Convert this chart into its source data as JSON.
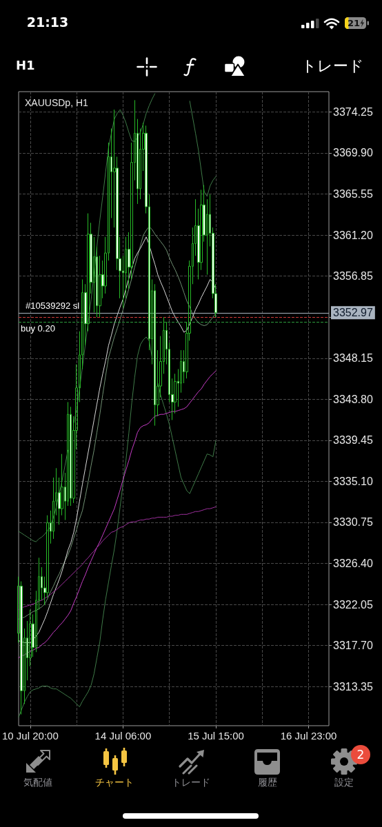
{
  "chart_data": {
    "type": "candlestick",
    "title": "XAUUSDp, H1",
    "categories": [
      null,
      null,
      null,
      null,
      "10 Jul 20:00",
      null,
      null,
      null,
      null,
      null,
      null,
      null,
      null,
      null,
      null,
      null,
      null,
      null,
      null,
      null,
      null,
      null,
      null,
      null,
      null,
      null,
      null,
      null,
      null,
      null,
      null,
      null,
      null,
      null,
      null,
      null,
      "14 Jul 06:00",
      null,
      null,
      null,
      null,
      null,
      null,
      null,
      null,
      null,
      null,
      null,
      null,
      null,
      null,
      null,
      null,
      null,
      null,
      null,
      null,
      null,
      null,
      null,
      null,
      null,
      null,
      null,
      null,
      null,
      null,
      null,
      "15 Jul 15:00",
      null,
      null,
      null,
      null,
      null,
      null,
      null,
      null,
      null,
      null,
      null,
      null,
      null,
      null,
      null,
      null,
      null,
      null,
      null,
      null,
      null,
      null,
      null,
      null,
      null,
      null,
      null,
      null,
      null,
      null,
      null,
      "16 Jul 23:00",
      null,
      null,
      null,
      null,
      null,
      null,
      null
    ],
    "color": "#27b927",
    "ohlc": [
      [
        3319.0,
        3325.0,
        3318.0,
        3324.0
      ],
      [
        3324.0,
        3324.5,
        3310.4,
        3312.9
      ],
      [
        3312.9,
        3319.5,
        3311.5,
        3318.5
      ],
      [
        3318.5,
        3320.3,
        3314.0,
        3316.4
      ],
      [
        3316.4,
        3321.5,
        3315.5,
        3320.0
      ],
      [
        3320.0,
        3321.0,
        3316.5,
        3317.5
      ],
      [
        3317.5,
        3323.5,
        3317.0,
        3322.5
      ],
      [
        3322.5,
        3327.0,
        3321.5,
        3325.0
      ],
      [
        3325.0,
        3326.0,
        3322.5,
        3323.8
      ],
      [
        3323.8,
        3325.0,
        3322.0,
        3323.3
      ],
      [
        3323.3,
        3331.5,
        3322.8,
        3330.7
      ],
      [
        3330.7,
        3332.0,
        3328.5,
        3329.8
      ],
      [
        3329.8,
        3335.5,
        3329.0,
        3333.0
      ],
      [
        3333.0,
        3336.5,
        3331.5,
        3333.9
      ],
      [
        3333.9,
        3335.5,
        3330.5,
        3332.2
      ],
      [
        3332.2,
        3338.0,
        3331.5,
        3334.5
      ],
      [
        3334.5,
        3336.0,
        3331.0,
        3333.0
      ],
      [
        3333.0,
        3343.5,
        3332.5,
        3342.2
      ],
      [
        3342.2,
        3343.0,
        3332.5,
        3333.3
      ],
      [
        3333.3,
        3342.0,
        3332.8,
        3340.5
      ],
      [
        3340.5,
        3347.5,
        3338.5,
        3345.0
      ],
      [
        3345.0,
        3351.0,
        3343.5,
        3348.5
      ],
      [
        3348.5,
        3356.5,
        3347.0,
        3355.1
      ],
      [
        3355.1,
        3356.0,
        3349.5,
        3351.8
      ],
      [
        3351.8,
        3363.5,
        3351.0,
        3361.3
      ],
      [
        3361.3,
        3362.5,
        3355.0,
        3356.2
      ],
      [
        3356.2,
        3361.0,
        3353.0,
        3358.9
      ],
      [
        3358.9,
        3360.0,
        3352.5,
        3353.7
      ],
      [
        3353.7,
        3359.0,
        3352.5,
        3357.0
      ],
      [
        3357.0,
        3358.5,
        3354.5,
        3355.8
      ],
      [
        3355.8,
        3361.0,
        3355.0,
        3359.3
      ],
      [
        3359.3,
        3371.0,
        3358.5,
        3369.5
      ],
      [
        3369.5,
        3372.5,
        3363.0,
        3367.9
      ],
      [
        3367.9,
        3374.5,
        3362.0,
        3368.3
      ],
      [
        3368.3,
        3369.5,
        3357.5,
        3358.7
      ],
      [
        3358.7,
        3361.0,
        3354.5,
        3357.4
      ],
      [
        3357.4,
        3359.0,
        3353.5,
        3357.2
      ],
      [
        3357.2,
        3361.0,
        3354.5,
        3359.7
      ],
      [
        3359.7,
        3361.5,
        3355.5,
        3357.8
      ],
      [
        3357.8,
        3371.0,
        3356.5,
        3368.9
      ],
      [
        3368.9,
        3375.5,
        3367.0,
        3372.0
      ],
      [
        3372.0,
        3373.5,
        3364.5,
        3366.1
      ],
      [
        3366.1,
        3372.5,
        3365.0,
        3370.3
      ],
      [
        3370.3,
        3373.1,
        3368.0,
        3372.0
      ],
      [
        3372.0,
        3372.8,
        3363.5,
        3364.2
      ],
      [
        3364.2,
        3365.5,
        3349.0,
        3350.2
      ],
      [
        3350.2,
        3356.5,
        3347.5,
        3355.3
      ],
      [
        3355.3,
        3356.0,
        3341.0,
        3343.2
      ],
      [
        3343.2,
        3349.0,
        3342.0,
        3345.2
      ],
      [
        3345.2,
        3350.5,
        3344.0,
        3347.8
      ],
      [
        3347.8,
        3352.5,
        3346.5,
        3351.1
      ],
      [
        3351.1,
        3352.0,
        3347.5,
        3349.1
      ],
      [
        3349.1,
        3349.8,
        3343.5,
        3344.3
      ],
      [
        3344.3,
        3346.0,
        3341.6,
        3343.5
      ],
      [
        3343.5,
        3346.5,
        3342.3,
        3345.7
      ],
      [
        3345.7,
        3347.0,
        3343.0,
        3345.5
      ],
      [
        3345.5,
        3349.0,
        3344.5,
        3347.8
      ],
      [
        3347.8,
        3349.0,
        3345.5,
        3346.7
      ],
      [
        3346.7,
        3352.0,
        3346.0,
        3350.8
      ],
      [
        3350.8,
        3358.5,
        3350.0,
        3357.9
      ],
      [
        3357.9,
        3362.0,
        3356.0,
        3360.3
      ],
      [
        3360.3,
        3365.0,
        3359.0,
        3362.2
      ],
      [
        3362.2,
        3364.0,
        3356.5,
        3358.3
      ],
      [
        3358.3,
        3366.0,
        3357.5,
        3364.4
      ],
      [
        3364.4,
        3366.5,
        3360.5,
        3361.2
      ],
      [
        3361.2,
        3365.0,
        3357.0,
        3363.4
      ],
      [
        3363.4,
        3365.5,
        3360.0,
        3361.4
      ],
      [
        3361.4,
        3362.0,
        3354.5,
        3355.0
      ],
      [
        3355.0,
        3356.0,
        3352.5,
        3352.97
      ],
      null,
      null,
      null,
      null,
      null,
      null,
      null,
      null,
      null,
      null,
      null,
      null,
      null,
      null,
      null,
      null,
      null,
      null,
      null,
      null,
      null,
      null,
      null,
      null,
      null,
      null,
      null,
      null,
      null,
      null,
      null,
      null,
      null,
      null,
      null,
      null,
      null,
      null,
      null
    ],
    "series": [
      {
        "type": "line",
        "color": "#3f7a48",
        "values": [
          3329.8,
          3329.6,
          3329.4,
          3329.2,
          3329.0,
          3328.8,
          3328.7,
          3329.0,
          3329.2,
          3329.5,
          3329.9,
          3330.3,
          3331.3,
          3332.4,
          3333.8,
          3335.2,
          3336.8,
          3338.4,
          null,
          3341.3,
          3342.7,
          3344.9,
          3347.2,
          3349.6,
          3352.0,
          3354.4,
          3357.1,
          3360.0,
          3362.8,
          3365.3,
          3367.9,
          3370.5,
          3372.0,
          3373.5,
          3374.1,
          3374.5,
          3373.9,
          3373.1,
          3372.1,
          3371.2,
          3371.1,
          3371.6,
          3372.1,
          3373.0,
          3374.1,
          3374.9,
          3375.6,
          3376.2,
          null,
          null,
          null,
          null,
          null,
          null,
          null,
          null,
          null,
          null,
          null,
          3375.4,
          3373.7,
          3372.0,
          3370.2,
          3368.0,
          3365.8,
          3365.3,
          3366.4,
          3367.0,
          3367.4,
          null,
          null,
          null,
          null,
          null,
          null,
          null,
          null,
          null,
          null,
          null,
          null,
          null,
          null,
          null,
          null,
          null,
          null,
          null,
          null,
          null,
          null,
          null,
          null,
          null,
          null,
          null,
          null,
          null,
          null,
          null,
          null,
          null,
          null,
          null,
          null,
          null,
          null,
          null
        ]
      },
      {
        "type": "line",
        "color": "#6f8f72",
        "values": [
          3320.5,
          3320.6,
          3320.7,
          3320.9,
          3321.1,
          3321.3,
          3321.4,
          3321.6,
          3321.8,
          3322.1,
          3322.7,
          3323.4,
          3324.0,
          3324.7,
          3325.3,
          3326.0,
          3326.7,
          3327.3,
          3328.1,
          3329.1,
          3330.0,
          3331.1,
          3332.0,
          3333.5,
          3335.1,
          3336.8,
          3338.4,
          3340.3,
          3342.2,
          3344.3,
          3346.3,
          3348.2,
          3349.3,
          3350.4,
          3351.3,
          3352.3,
          3353.3,
          3354.4,
          3355.5,
          3356.6,
          3357.8,
          3358.9,
          3360.1,
          3361.2,
          3361.7,
          3362.1,
          3361.8,
          3361.3,
          3360.9,
          3360.5,
          3360.1,
          3359.6,
          3358.8,
          3358.1,
          3357.5,
          3356.8,
          3356.0,
          3355.1,
          3354.2,
          3353.6,
          3352.8,
          3352.3,
          3351.9,
          3351.7,
          3351.6,
          3351.7,
          3352.1,
          3352.5,
          3352.9,
          null,
          null,
          null,
          null,
          null,
          null,
          null,
          null,
          null,
          null,
          null,
          null,
          null,
          null,
          null,
          null,
          null,
          null,
          null,
          null,
          null,
          null,
          null,
          null,
          null,
          null,
          null,
          null,
          null,
          null,
          null,
          null,
          null,
          null,
          null,
          null,
          null,
          null,
          null
        ]
      },
      {
        "type": "line",
        "color": "#3f7a48",
        "values": [
          3310.1,
          3310.9,
          3311.7,
          3312.3,
          3312.8,
          3313.0,
          3313.1,
          3313.2,
          3313.4,
          3313.4,
          3313.4,
          3313.2,
          3313.1,
          3313.1,
          3312.9,
          3312.7,
          3312.5,
          3312.3,
          3312.1,
          3311.8,
          3311.5,
          3311.2,
          3311.8,
          3312.3,
          3312.8,
          3313.5,
          3314.7,
          3316.4,
          3318.1,
          3320.5,
          3322.6,
          3324.4,
          3326.2,
          3327.9,
          3330.0,
          3332.4,
          3334.9,
          3337.3,
          3340.2,
          3343.4,
          3346.1,
          3348.4,
          3349.6,
          3350.1,
          3350.4,
          3350.0,
          3348.3,
          null,
          3345.5,
          3344.2,
          3343.2,
          3342.2,
          3341.1,
          3339.7,
          3338.3,
          3336.9,
          3335.5,
          3334.8,
          3334.1,
          3333.8,
          3334.5,
          3335.2,
          3335.9,
          3336.6,
          3337.3,
          3338.0,
          3337.9,
          3337.7,
          3339.4,
          null,
          null,
          null,
          null,
          null,
          null,
          null,
          null,
          null,
          null,
          null,
          null,
          null,
          null,
          null,
          null,
          null,
          null,
          null,
          null,
          null,
          null,
          null,
          null,
          null,
          null,
          null,
          null,
          null,
          null,
          null,
          null,
          null,
          null,
          null,
          null,
          null,
          null,
          null
        ]
      },
      {
        "type": "line",
        "color": "#d9d9d9",
        "values": [
          3318.2,
          3318.1,
          3318.0,
          3318.0,
          3318.0,
          3318.3,
          3318.7,
          3319.1,
          3319.8,
          3320.5,
          3321.3,
          3322.2,
          3323.1,
          3323.9,
          3324.7,
          3325.6,
          3326.7,
          3327.8,
          3328.6,
          3329.7,
          3331.2,
          3333.0,
          3334.8,
          3336.5,
          3338.2,
          3339.9,
          3341.6,
          3343.3,
          3345.0,
          3346.5,
          3347.9,
          3349.5,
          3350.6,
          3351.8,
          3352.7,
          3353.6,
          3354.4,
          3355.5,
          3356.6,
          3357.7,
          3358.7,
          3359.3,
          3359.8,
          3360.4,
          3361.0,
          3360.2,
          3359.1,
          3358.1,
          3357.0,
          3356.2,
          3355.5,
          3354.7,
          3353.9,
          3353.1,
          3352.5,
          3352.0,
          3351.5,
          3350.9,
          3351.1,
          3351.8,
          3352.5,
          3353.3,
          3353.9,
          3354.6,
          3355.2,
          3355.8,
          3356.5,
          3356.2,
          3355.5,
          null,
          null,
          null,
          null,
          null,
          null,
          null,
          null,
          null,
          null,
          null,
          null,
          null,
          null,
          null,
          null,
          null,
          null,
          null,
          null,
          null,
          null,
          null,
          null,
          null,
          null,
          null,
          null,
          null,
          null,
          null,
          null,
          null,
          null,
          null,
          null,
          null,
          null,
          null
        ]
      },
      {
        "type": "line",
        "color": "#c43cc4",
        "values": [
          3316.4,
          3316.6,
          3316.7,
          3316.9,
          3317.1,
          3317.2,
          3317.4,
          3317.5,
          3317.8,
          3318.0,
          3318.3,
          3318.7,
          3319.1,
          3319.4,
          3319.8,
          3320.1,
          3320.5,
          3320.9,
          3321.4,
          3322.2,
          3322.9,
          3323.7,
          3324.5,
          3325.2,
          3326.0,
          3326.7,
          3327.4,
          3328.1,
          3328.7,
          3329.4,
          3330.1,
          3330.8,
          3331.5,
          3332.2,
          3333.2,
          3334.2,
          3335.3,
          3336.3,
          3337.3,
          3338.4,
          3339.3,
          3340.3,
          3340.8,
          3341.0,
          3341.1,
          3341.3,
          3341.7,
          3342.0,
          3342.1,
          3342.2,
          3342.2,
          3342.3,
          3342.4,
          3342.5,
          3342.5,
          3342.6,
          3342.7,
          3342.8,
          3343.0,
          3343.4,
          3343.8,
          3344.2,
          3344.6,
          3344.9,
          3345.4,
          3345.8,
          3346.2,
          3346.5,
          3346.8,
          null,
          null,
          null,
          null,
          null,
          null,
          null,
          null,
          null,
          null,
          null,
          null,
          null,
          null,
          null,
          null,
          null,
          null,
          null,
          null,
          null,
          null,
          null,
          null,
          null,
          null,
          null,
          null,
          null,
          null,
          null,
          null,
          null,
          null,
          null,
          null,
          null,
          null,
          null
        ]
      },
      {
        "type": "line",
        "color": "#9c2f9c",
        "values": [
          3321.5,
          3321.7,
          3321.8,
          3321.9,
          3322.0,
          3322.1,
          3322.2,
          3322.4,
          3322.5,
          3322.7,
          3322.9,
          3323.1,
          3323.4,
          3323.6,
          3323.9,
          3324.2,
          3324.5,
          3324.8,
          3325.1,
          3325.4,
          3325.7,
          3326.0,
          3326.3,
          3326.7,
          3327.0,
          3327.4,
          3327.7,
          3328.1,
          3328.4,
          3328.8,
          3329.1,
          3329.4,
          3329.7,
          3329.8,
          3330.0,
          3330.2,
          3330.3,
          3330.5,
          3330.7,
          3330.8,
          3330.8,
          3330.9,
          3331.0,
          3331.0,
          3331.1,
          3331.1,
          3331.2,
          3331.2,
          3331.3,
          3331.3,
          3331.3,
          3331.3,
          3331.4,
          3331.4,
          3331.5,
          3331.5,
          3331.6,
          3331.6,
          3331.6,
          3331.7,
          3331.8,
          3331.9,
          3331.9,
          3332.0,
          3332.1,
          3332.2,
          3332.2,
          3332.3,
          3332.4,
          null,
          null,
          null,
          null,
          null,
          null,
          null,
          null,
          null,
          null,
          null,
          null,
          null,
          null,
          null,
          null,
          null,
          null,
          null,
          null,
          null,
          null,
          null,
          null,
          null,
          null,
          null,
          null,
          null,
          null,
          null,
          null,
          null,
          null,
          null,
          null,
          null,
          null,
          null
        ]
      }
    ],
    "ylim": [
      3309.2,
      3376.4
    ],
    "yticks": [
      3313.35,
      {
        "value": 3317.7,
        "label": "3317.70"
      },
      3322.05,
      {
        "value": 3326.4,
        "label": "3326.40"
      },
      3330.75,
      {
        "value": 3335.1,
        "label": "3335.10"
      },
      3339.45,
      {
        "value": 3343.8,
        "label": "3343.80"
      },
      3348.15,
      {
        "value": 3352.5,
        "label": null
      },
      3356.85,
      {
        "value": 3361.2,
        "label": "3361.20"
      },
      3365.55,
      {
        "value": 3369.9,
        "label": "3369.90"
      },
      3374.25
    ],
    "grid": true,
    "ref_lines": [
      {
        "axis": "y",
        "value": 3352.97,
        "label": "3352.97",
        "color": "#aab4c0",
        "line_style": "solid"
      },
      {
        "axis": "y",
        "value": 3352.5,
        "label": "#10539292 sl",
        "color": "#d23c3c",
        "line_style": "dashed"
      },
      {
        "axis": "y",
        "value": 3352.0,
        "label": "buy 0.20",
        "color": "#2e9e3e",
        "line_style": "dashed"
      }
    ],
    "annotations": [
      "21:13",
      "21",
      "H1",
      "トレード",
      "気配値",
      "チャート",
      "トレード",
      "履歴",
      "設定",
      "2"
    ]
  }
}
